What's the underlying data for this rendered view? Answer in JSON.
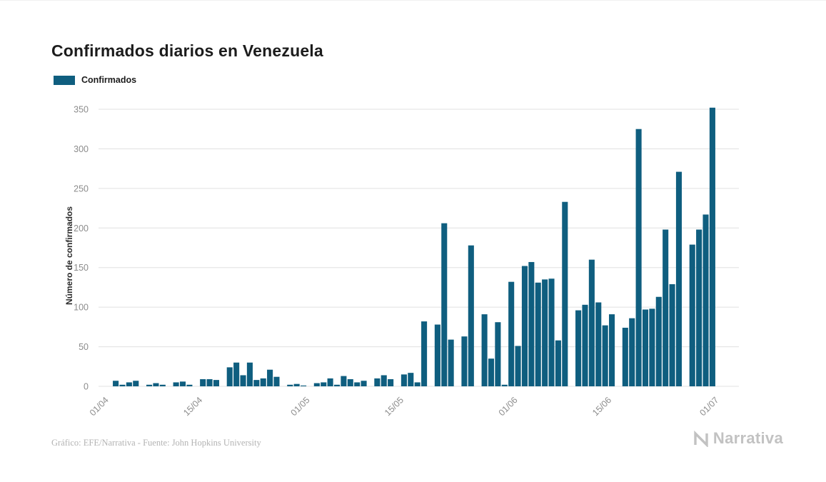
{
  "page": {
    "title": "Confirmados diarios en Venezuela"
  },
  "legend": {
    "label": "Confirmados"
  },
  "footer": {
    "credit": "Gráfico: EFE/Narrativa - Fuente: John Hopkins University",
    "brand": "Narrativa"
  },
  "colors": {
    "bar": "#0f5e7f",
    "grid": "#e0e0e0",
    "tick": "#8c8c8c",
    "title": "#1c1c1c",
    "footer": "#b3b3b3",
    "brand": "#c2c2c2"
  },
  "chart_data": {
    "type": "bar",
    "title": "Confirmados diarios en Venezuela",
    "xlabel": "",
    "ylabel": "Número de confirmados",
    "legend_entries": [
      "Confirmados"
    ],
    "legend_position": "top-left",
    "grid": true,
    "ylim": [
      0,
      350
    ],
    "yticks": [
      0,
      50,
      100,
      150,
      200,
      250,
      300,
      350
    ],
    "x_tick_labels": [
      "01/04",
      "15/04",
      "01/05",
      "15/05",
      "01/06",
      "15/06",
      "01/07"
    ],
    "x_tick_positions": [
      0,
      14,
      30,
      44,
      61,
      75,
      91
    ],
    "x_range_days": 92,
    "values": [
      0,
      7,
      2,
      5,
      7,
      0,
      2,
      4,
      2,
      0,
      5,
      6,
      2,
      0,
      9,
      9,
      8,
      0,
      24,
      30,
      14,
      30,
      8,
      10,
      21,
      12,
      0,
      2,
      3,
      1,
      0,
      4,
      5,
      10,
      2,
      13,
      9,
      5,
      7,
      0,
      10,
      14,
      9,
      0,
      15,
      17,
      5,
      82,
      0,
      78,
      206,
      59,
      0,
      63,
      178,
      0,
      91,
      35,
      81,
      2,
      132,
      51,
      152,
      157,
      131,
      135,
      136,
      58,
      233,
      0,
      96,
      103,
      160,
      106,
      77,
      91,
      0,
      74,
      86,
      325,
      97,
      98,
      113,
      198,
      129,
      271,
      0,
      179,
      198,
      217,
      352,
      0
    ]
  }
}
